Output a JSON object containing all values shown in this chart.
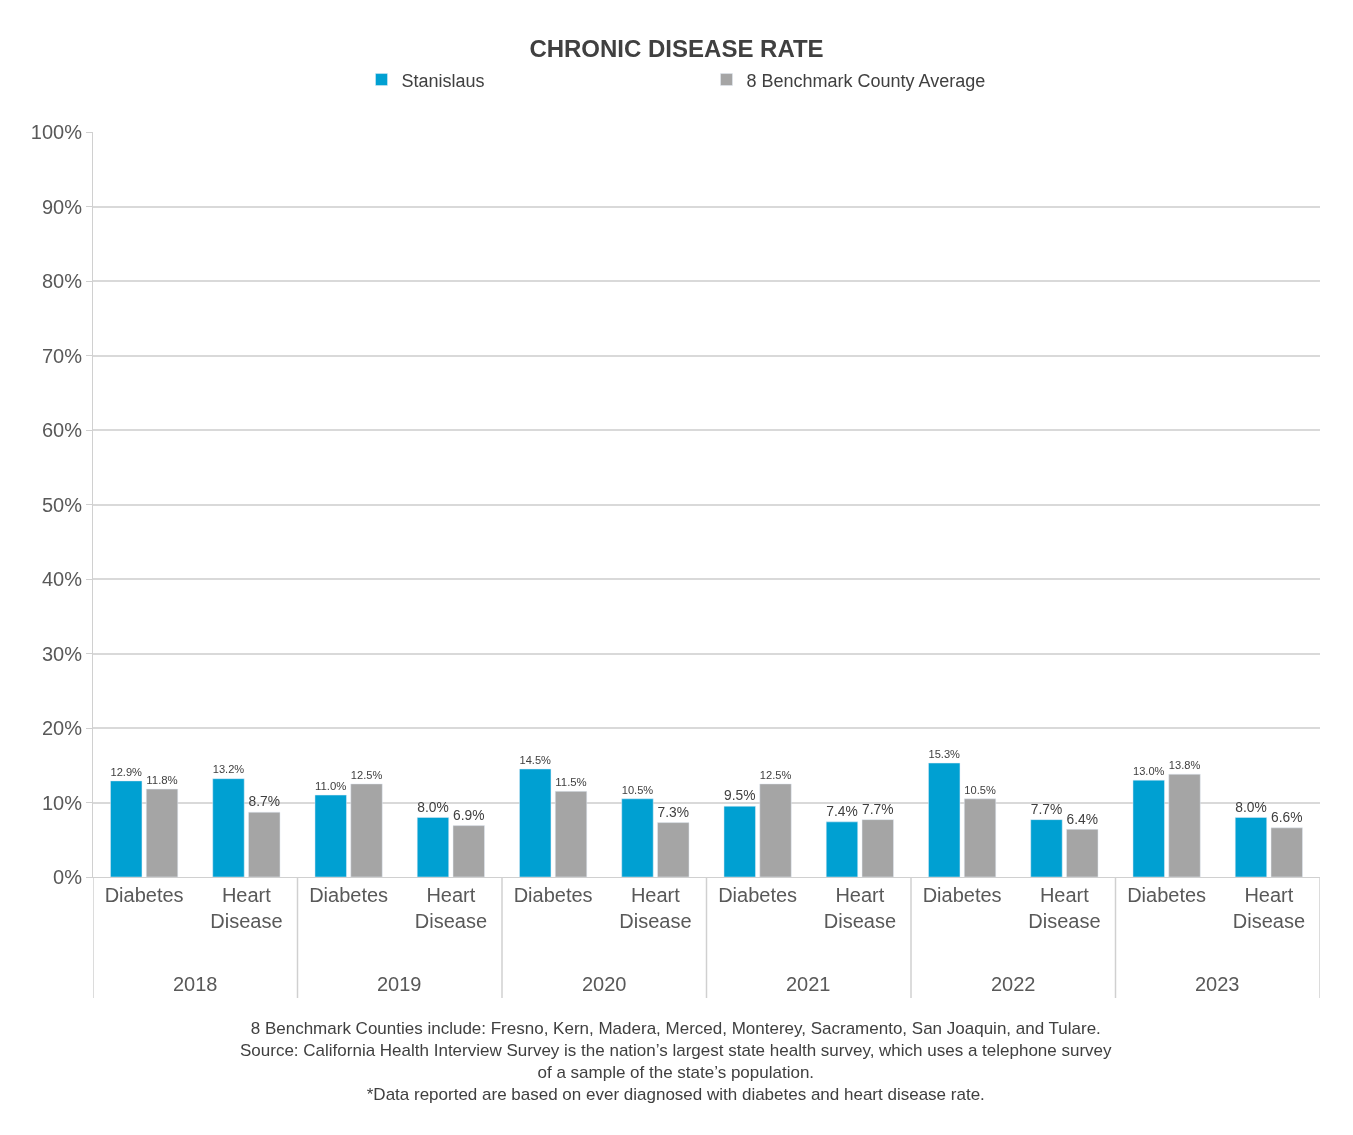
{
  "chart_data": {
    "type": "bar",
    "title": "CHRONIC DISEASE RATE",
    "categories": [
      "Diabetes",
      "Heart Disease",
      "Diabetes",
      "Heart Disease",
      "Diabetes",
      "Heart Disease",
      "Diabetes",
      "Heart Disease",
      "Diabetes",
      "Heart Disease",
      "Diabetes",
      "Heart Disease"
    ],
    "series": [
      {
        "name": "Stanislaus",
        "color": "#00a0d2",
        "values": [
          12.9,
          13.2,
          11.0,
          8.0,
          14.5,
          10.5,
          9.5,
          7.4,
          15.3,
          7.7,
          13.0,
          8.0
        ],
        "value_labels": [
          "12.9%",
          "13.2%",
          "11.0%",
          "8.0%",
          "14.5%",
          "10.5%",
          "9.5%",
          "7.4%",
          "15.3%",
          "7.7%",
          "13.0%",
          "8.0%"
        ]
      },
      {
        "name": "8 Benchmark County Average",
        "color": "#a5a5a5",
        "values": [
          11.8,
          8.7,
          12.5,
          6.9,
          11.5,
          7.3,
          12.5,
          7.7,
          10.5,
          6.4,
          13.8,
          6.6
        ],
        "value_labels": [
          "11.8%",
          "8.7%",
          "12.5%",
          "6.9%",
          "11.5%",
          "7.3%",
          "12.5%",
          "7.7%",
          "10.5%",
          "6.4%",
          "13.8%",
          "6.6%"
        ]
      }
    ],
    "ylim": [
      0,
      100
    ],
    "yticks": [
      {
        "value": 0,
        "label": "0%"
      },
      {
        "value": 10,
        "label": "10%"
      },
      {
        "value": 20,
        "label": "20%"
      },
      {
        "value": 30,
        "label": "30%"
      },
      {
        "value": 40,
        "label": "40%"
      },
      {
        "value": 50,
        "label": "50%"
      },
      {
        "value": 60,
        "label": "60%"
      },
      {
        "value": 70,
        "label": "70%"
      },
      {
        "value": 80,
        "label": "80%"
      },
      {
        "value": 90,
        "label": "90%"
      },
      {
        "value": 100,
        "label": "100%"
      }
    ],
    "grid": "y",
    "legend": "top",
    "annotations": [
      "2018",
      "2019",
      "2020",
      "2021",
      "2022",
      "2023",
      "8 Benchmark Counties include: Fresno, Kern, Madera, Merced, Monterey, Sacramento, San Joaquin, and Tulare.",
      "Source: California Health Interview Survey is the nation’s largest state health survey, which uses a telephone survey of a sample of the state’s population.",
      "*Data reported are based on ever diagnosed with diabetes and heart disease rate."
    ]
  }
}
